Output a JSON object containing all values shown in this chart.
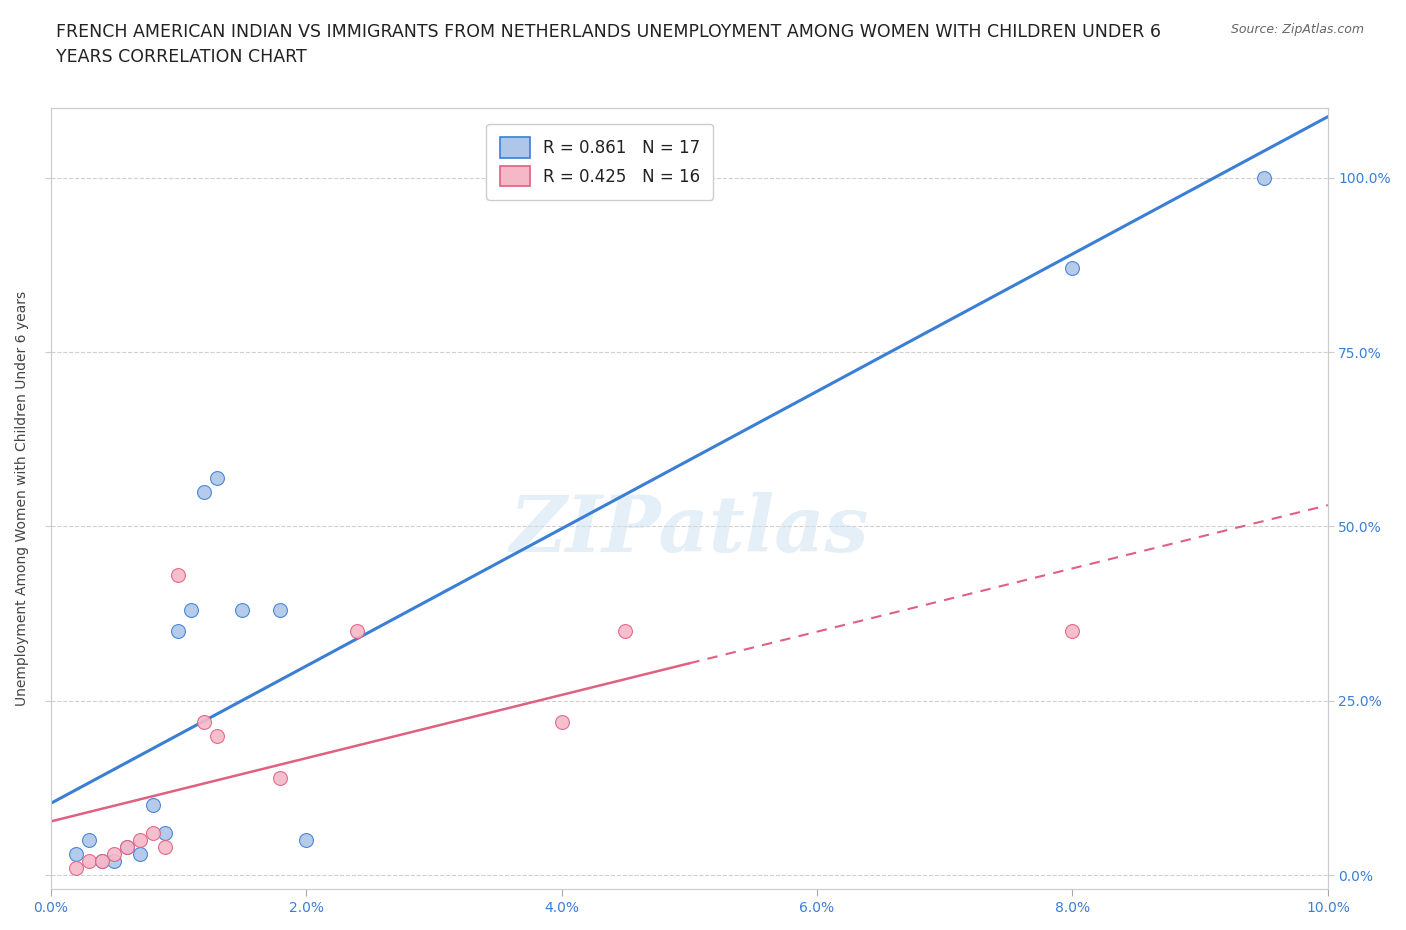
{
  "title": "FRENCH AMERICAN INDIAN VS IMMIGRANTS FROM NETHERLANDS UNEMPLOYMENT AMONG WOMEN WITH CHILDREN UNDER 6\nYEARS CORRELATION CHART",
  "source": "Source: ZipAtlas.com",
  "xlabel": "",
  "ylabel": "Unemployment Among Women with Children Under 6 years",
  "xlim": [
    0.0,
    0.1
  ],
  "ylim": [
    -0.02,
    1.1
  ],
  "xticks": [
    0.0,
    0.02,
    0.04,
    0.06,
    0.08,
    0.1
  ],
  "yticks": [
    0.0,
    0.25,
    0.5,
    0.75,
    1.0
  ],
  "ytick_labels": [
    "0.0%",
    "25.0%",
    "50.0%",
    "75.0%",
    "100.0%"
  ],
  "xtick_labels": [
    "0.0%",
    "2.0%",
    "4.0%",
    "6.0%",
    "8.0%",
    "10.0%"
  ],
  "grid_color": "#d0d0d0",
  "background_color": "#ffffff",
  "blue_scatter_color": "#aec6e8",
  "pink_scatter_color": "#f5b8c8",
  "blue_line_color": "#3a7fd5",
  "pink_line_color": "#e06080",
  "blue_R": 0.861,
  "blue_N": 17,
  "pink_R": 0.425,
  "pink_N": 16,
  "watermark_text": "ZIPatlas",
  "blue_points_x": [
    0.002,
    0.003,
    0.004,
    0.005,
    0.006,
    0.007,
    0.008,
    0.009,
    0.01,
    0.011,
    0.012,
    0.013,
    0.015,
    0.018,
    0.02,
    0.08,
    0.095
  ],
  "blue_points_y": [
    0.03,
    0.05,
    0.02,
    0.02,
    0.04,
    0.03,
    0.1,
    0.06,
    0.35,
    0.38,
    0.55,
    0.57,
    0.38,
    0.38,
    0.05,
    0.87,
    1.0
  ],
  "pink_points_x": [
    0.002,
    0.003,
    0.004,
    0.005,
    0.006,
    0.007,
    0.008,
    0.009,
    0.01,
    0.012,
    0.013,
    0.018,
    0.024,
    0.04,
    0.045,
    0.08
  ],
  "pink_points_y": [
    0.01,
    0.02,
    0.02,
    0.03,
    0.04,
    0.05,
    0.06,
    0.04,
    0.43,
    0.22,
    0.2,
    0.14,
    0.35,
    0.22,
    0.35,
    0.35
  ],
  "title_fontsize": 12.5,
  "label_fontsize": 10,
  "tick_fontsize": 10,
  "legend_fontsize": 12,
  "source_fontsize": 9,
  "tick_color": "#3a7fd5"
}
